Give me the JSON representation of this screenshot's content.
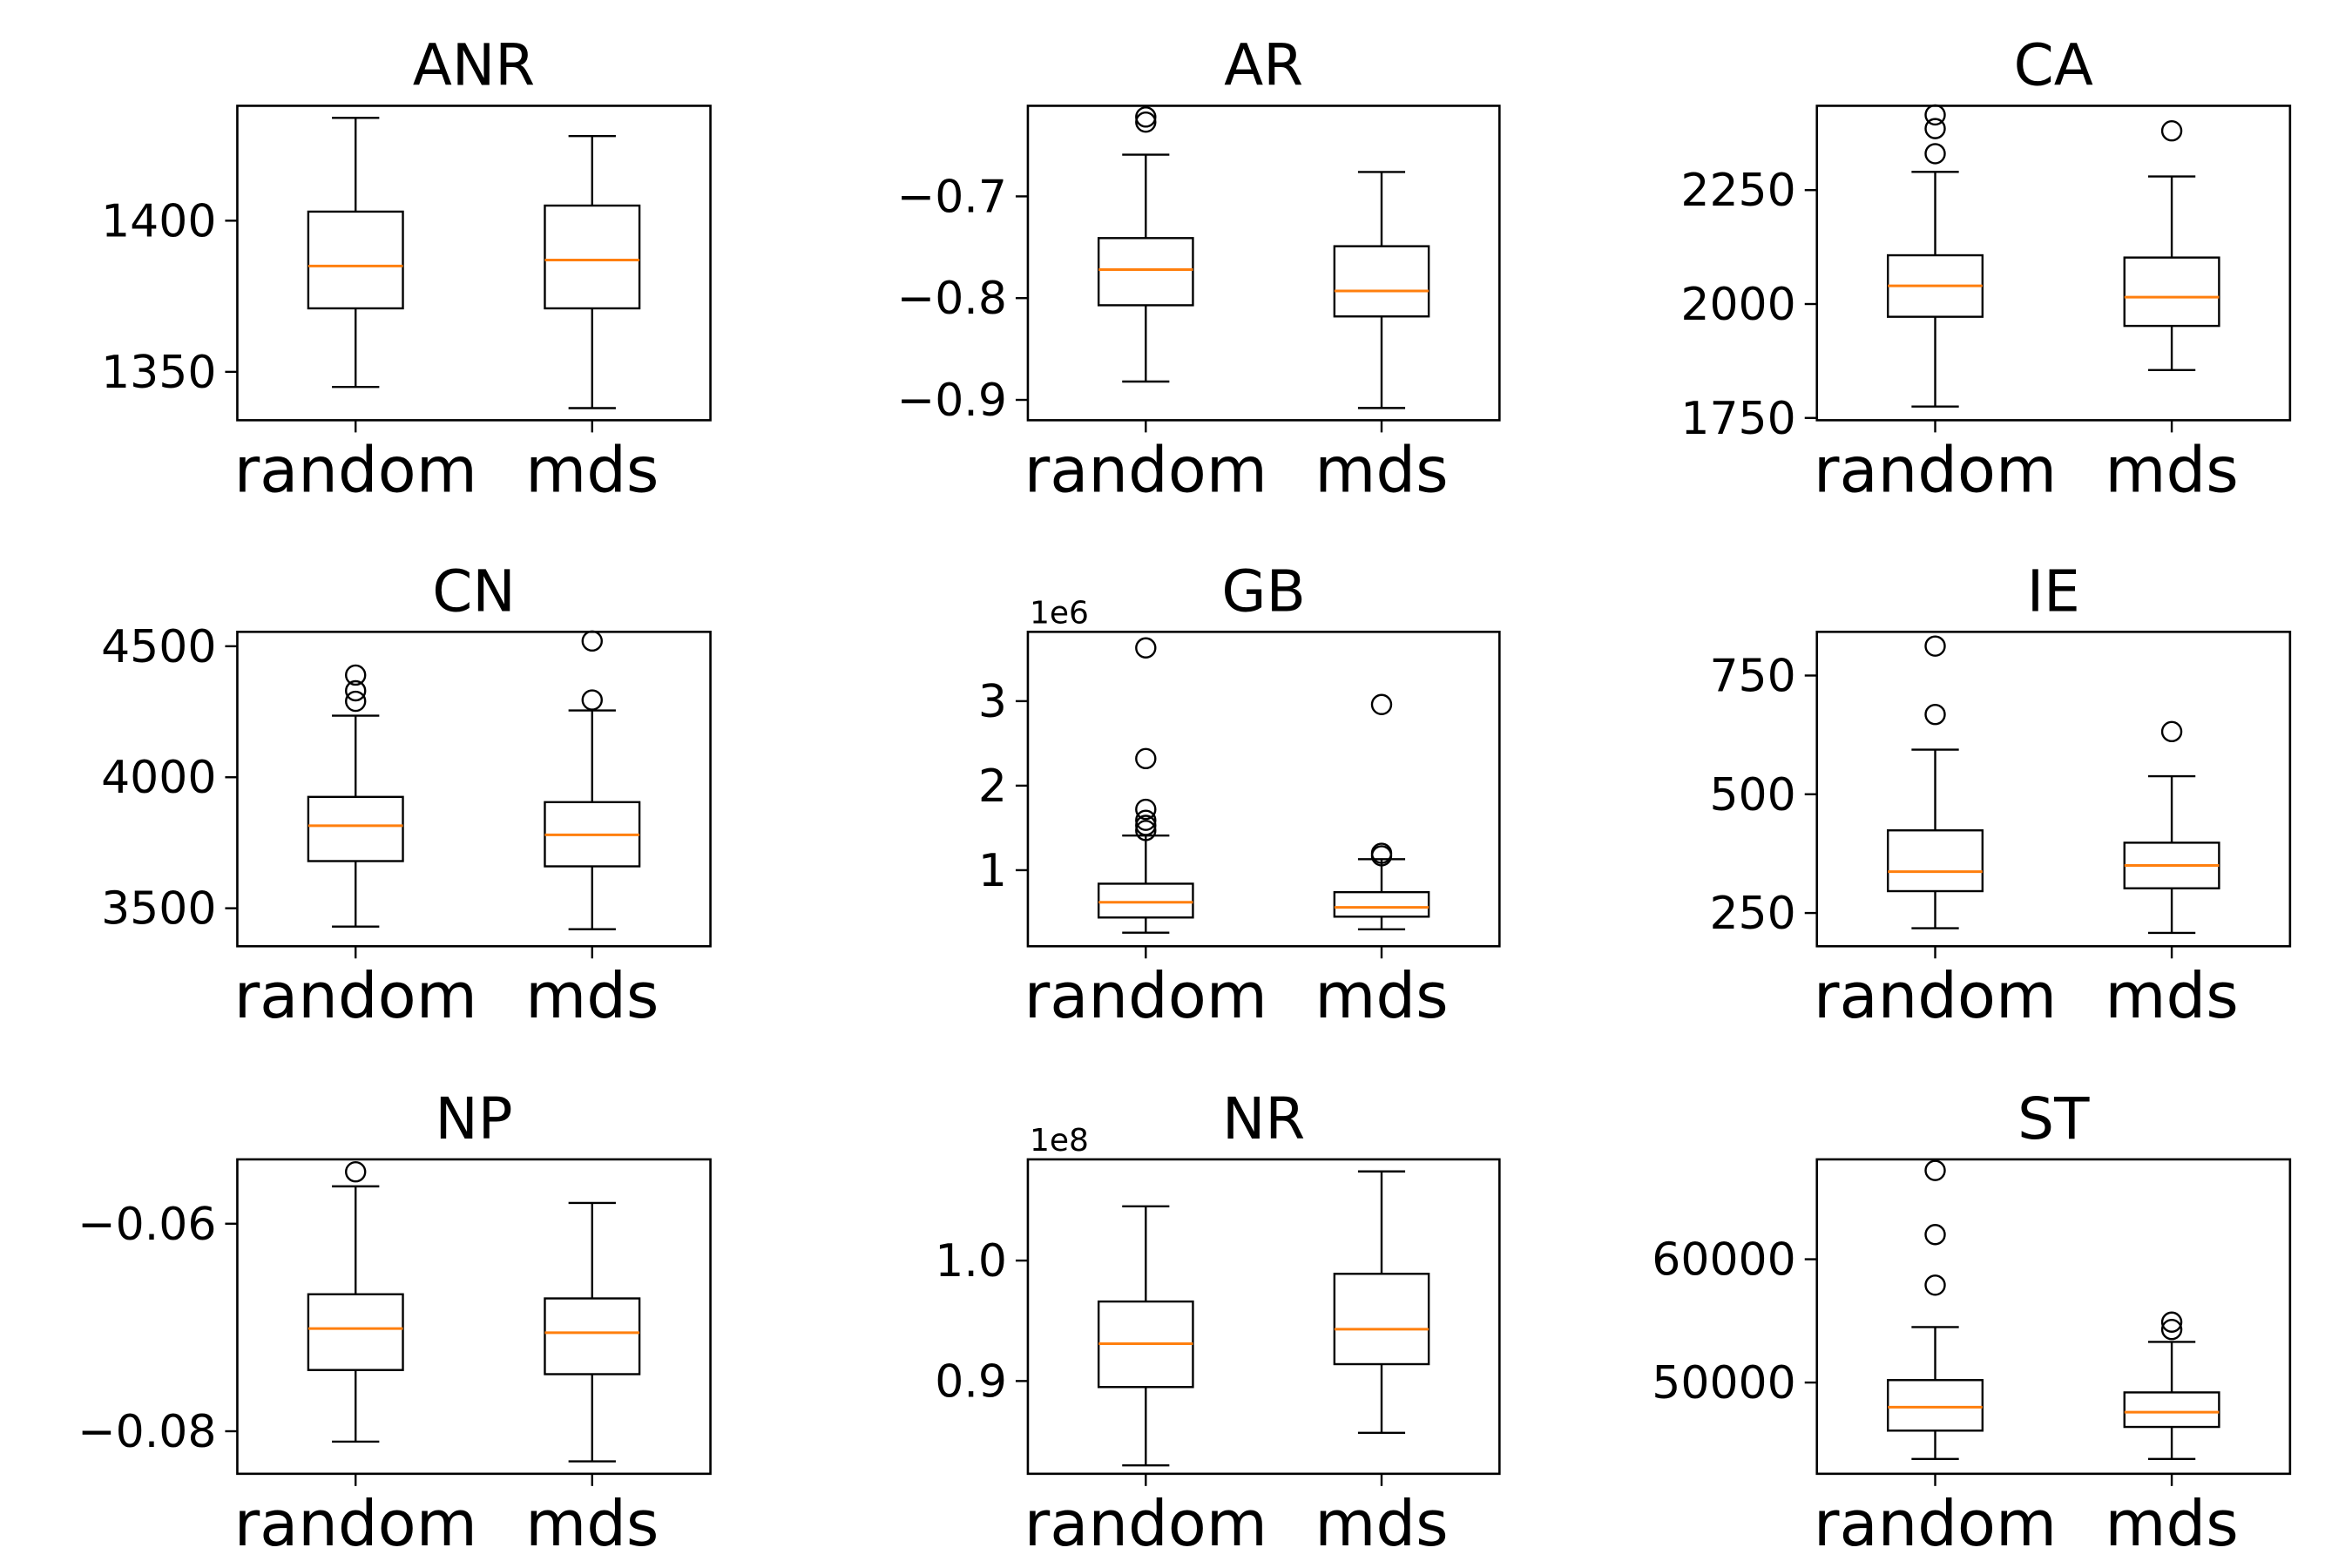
{
  "chart_data": [
    {
      "type": "box",
      "title": "ANR",
      "categories": [
        "random",
        "mds"
      ],
      "ylim": [
        1334,
        1438
      ],
      "yticks": [
        {
          "v": 1350,
          "label": "1350"
        },
        {
          "v": 1400,
          "label": "1400"
        }
      ],
      "offset_text": "",
      "series": [
        {
          "name": "random",
          "whislo": 1345,
          "q1": 1371,
          "med": 1385,
          "q3": 1403,
          "whishi": 1434,
          "fliers": []
        },
        {
          "name": "mds",
          "whislo": 1338,
          "q1": 1371,
          "med": 1387,
          "q3": 1405,
          "whishi": 1428,
          "fliers": []
        }
      ]
    },
    {
      "type": "box",
      "title": "AR",
      "categories": [
        "random",
        "mds"
      ],
      "ylim": [
        -0.92,
        -0.611
      ],
      "yticks": [
        {
          "v": -0.9,
          "label": "−0.9"
        },
        {
          "v": -0.8,
          "label": "−0.8"
        },
        {
          "v": -0.7,
          "label": "−0.7"
        }
      ],
      "offset_text": "",
      "series": [
        {
          "name": "random",
          "whislo": -0.882,
          "q1": -0.807,
          "med": -0.772,
          "q3": -0.741,
          "whishi": -0.659,
          "fliers": [
            -0.627,
            -0.622
          ]
        },
        {
          "name": "mds",
          "whislo": -0.908,
          "q1": -0.818,
          "med": -0.793,
          "q3": -0.749,
          "whishi": -0.676,
          "fliers": []
        }
      ]
    },
    {
      "type": "box",
      "title": "CA",
      "categories": [
        "random",
        "mds"
      ],
      "ylim": [
        1745,
        2435
      ],
      "yticks": [
        {
          "v": 1750,
          "label": "1750"
        },
        {
          "v": 2000,
          "label": "2000"
        },
        {
          "v": 2250,
          "label": "2250"
        }
      ],
      "offset_text": "",
      "series": [
        {
          "name": "random",
          "whislo": 1775,
          "q1": 1972,
          "med": 2040,
          "q3": 2107,
          "whishi": 2290,
          "fliers": [
            2330,
            2385,
            2415
          ]
        },
        {
          "name": "mds",
          "whislo": 1855,
          "q1": 1952,
          "med": 2015,
          "q3": 2102,
          "whishi": 2280,
          "fliers": [
            2380
          ]
        }
      ]
    },
    {
      "type": "box",
      "title": "CN",
      "categories": [
        "random",
        "mds"
      ],
      "ylim": [
        3355,
        4555
      ],
      "yticks": [
        {
          "v": 3500,
          "label": "3500"
        },
        {
          "v": 4000,
          "label": "4000"
        },
        {
          "v": 4500,
          "label": "4500"
        }
      ],
      "offset_text": "",
      "series": [
        {
          "name": "random",
          "whislo": 3430,
          "q1": 3680,
          "med": 3815,
          "q3": 3925,
          "whishi": 4235,
          "fliers": [
            4290,
            4330,
            4390
          ]
        },
        {
          "name": "mds",
          "whislo": 3420,
          "q1": 3660,
          "med": 3780,
          "q3": 3905,
          "whishi": 4255,
          "fliers": [
            4295,
            4520
          ]
        }
      ]
    },
    {
      "type": "box",
      "title": "GB",
      "categories": [
        "random",
        "mds"
      ],
      "ylim": [
        0.1,
        3.82
      ],
      "yticks": [
        {
          "v": 1,
          "label": "1"
        },
        {
          "v": 2,
          "label": "2"
        },
        {
          "v": 3,
          "label": "3"
        }
      ],
      "offset_text": "1e6",
      "series": [
        {
          "name": "random",
          "whislo": 0.26,
          "q1": 0.44,
          "med": 0.62,
          "q3": 0.84,
          "whishi": 1.41,
          "fliers": [
            1.47,
            1.53,
            1.59,
            1.72,
            2.32,
            3.63
          ]
        },
        {
          "name": "mds",
          "whislo": 0.3,
          "q1": 0.45,
          "med": 0.56,
          "q3": 0.74,
          "whishi": 1.13,
          "fliers": [
            1.17,
            1.2,
            2.96
          ]
        }
      ]
    },
    {
      "type": "box",
      "title": "IE",
      "categories": [
        "random",
        "mds"
      ],
      "ylim": [
        180,
        842
      ],
      "yticks": [
        {
          "v": 250,
          "label": "250"
        },
        {
          "v": 500,
          "label": "500"
        },
        {
          "v": 750,
          "label": "750"
        }
      ],
      "offset_text": "",
      "series": [
        {
          "name": "random",
          "whislo": 218,
          "q1": 296,
          "med": 337,
          "q3": 424,
          "whishi": 594,
          "fliers": [
            668,
            812
          ]
        },
        {
          "name": "mds",
          "whislo": 208,
          "q1": 302,
          "med": 350,
          "q3": 398,
          "whishi": 538,
          "fliers": [
            632
          ]
        }
      ]
    },
    {
      "type": "box",
      "title": "NP",
      "categories": [
        "random",
        "mds"
      ],
      "ylim": [
        -0.0841,
        -0.0538
      ],
      "yticks": [
        {
          "v": -0.08,
          "label": "−0.08"
        },
        {
          "v": -0.06,
          "label": "−0.06"
        }
      ],
      "offset_text": "",
      "series": [
        {
          "name": "random",
          "whislo": -0.081,
          "q1": -0.0741,
          "med": -0.0701,
          "q3": -0.0668,
          "whishi": -0.0564,
          "fliers": [
            -0.055
          ]
        },
        {
          "name": "mds",
          "whislo": -0.0829,
          "q1": -0.0745,
          "med": -0.0705,
          "q3": -0.0672,
          "whishi": -0.058,
          "fliers": []
        }
      ]
    },
    {
      "type": "box",
      "title": "NR",
      "categories": [
        "random",
        "mds"
      ],
      "ylim": [
        0.823,
        1.084
      ],
      "yticks": [
        {
          "v": 0.9,
          "label": "0.9"
        },
        {
          "v": 1.0,
          "label": "1.0"
        }
      ],
      "offset_text": "1e8",
      "series": [
        {
          "name": "random",
          "whislo": 0.83,
          "q1": 0.895,
          "med": 0.931,
          "q3": 0.966,
          "whishi": 1.045,
          "fliers": []
        },
        {
          "name": "mds",
          "whislo": 0.857,
          "q1": 0.914,
          "med": 0.943,
          "q3": 0.989,
          "whishi": 1.074,
          "fliers": []
        }
      ]
    },
    {
      "type": "box",
      "title": "ST",
      "categories": [
        "random",
        "mds"
      ],
      "ylim": [
        42600,
        68100
      ],
      "yticks": [
        {
          "v": 50000,
          "label": "50000"
        },
        {
          "v": 60000,
          "label": "60000"
        }
      ],
      "offset_text": "",
      "series": [
        {
          "name": "random",
          "whislo": 43800,
          "q1": 46100,
          "med": 48000,
          "q3": 50200,
          "whishi": 54500,
          "fliers": [
            57900,
            62000,
            67200
          ]
        },
        {
          "name": "mds",
          "whislo": 43800,
          "q1": 46400,
          "med": 47600,
          "q3": 49200,
          "whishi": 53300,
          "fliers": [
            54300,
            54900
          ]
        }
      ]
    }
  ],
  "style": {
    "box_color": "#000000",
    "median_color": "#ff7f0e",
    "background": "#ffffff"
  }
}
